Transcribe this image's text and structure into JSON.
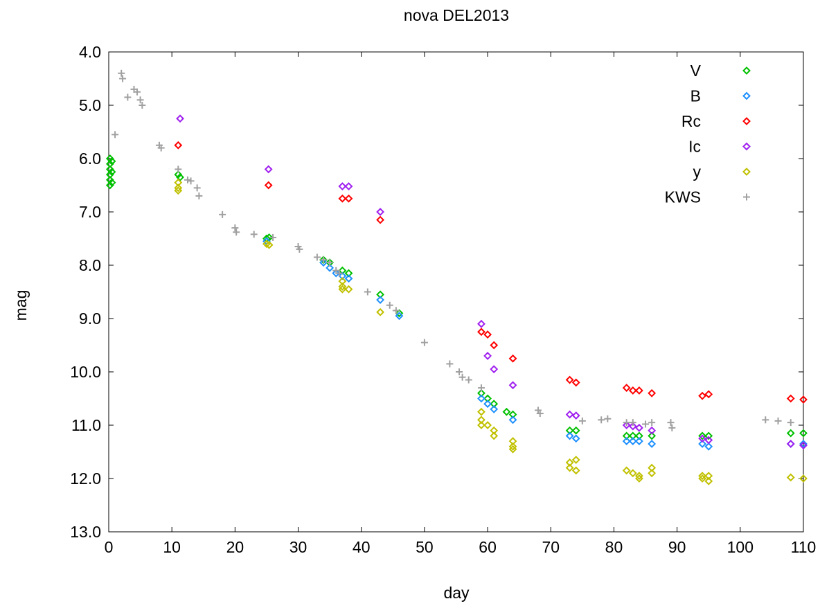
{
  "chart_data": {
    "type": "scatter",
    "title": "nova DEL2013",
    "xlabel": "day",
    "ylabel": "mag",
    "xlim": [
      0,
      110
    ],
    "ylim": [
      13.0,
      4.0
    ],
    "y_reversed": true,
    "grid": false,
    "legend_position": "top-right",
    "x_ticks": [
      0,
      10,
      20,
      30,
      40,
      50,
      60,
      70,
      80,
      90,
      100,
      110
    ],
    "x_tick_labels": [
      "0",
      "10",
      "20",
      "30",
      "40",
      "50",
      "60",
      "70",
      "80",
      "90",
      "100",
      "110"
    ],
    "y_ticks": [
      4.0,
      5.0,
      6.0,
      7.0,
      8.0,
      9.0,
      10.0,
      11.0,
      12.0,
      13.0
    ],
    "y_tick_labels": [
      "4.0",
      "5.0",
      "6.0",
      "7.0",
      "8.0",
      "9.0",
      "10.0",
      "11.0",
      "12.0",
      "13.0"
    ],
    "series": [
      {
        "name": "V",
        "color": "#00c000",
        "marker": "diamond",
        "points": [
          [
            0.2,
            6.0
          ],
          [
            0.2,
            6.1
          ],
          [
            0.2,
            6.2
          ],
          [
            0.2,
            6.3
          ],
          [
            0.2,
            6.4
          ],
          [
            0.2,
            6.5
          ],
          [
            0.5,
            6.05
          ],
          [
            0.5,
            6.25
          ],
          [
            0.5,
            6.45
          ],
          [
            11,
            6.3
          ],
          [
            11.3,
            6.35
          ],
          [
            25,
            7.5
          ],
          [
            25.4,
            7.48
          ],
          [
            34,
            7.9
          ],
          [
            35,
            7.95
          ],
          [
            37,
            8.1
          ],
          [
            38,
            8.15
          ],
          [
            43,
            8.55
          ],
          [
            46,
            8.9
          ],
          [
            59,
            10.4
          ],
          [
            60,
            10.5
          ],
          [
            61,
            10.6
          ],
          [
            63,
            10.75
          ],
          [
            64,
            10.8
          ],
          [
            73,
            11.1
          ],
          [
            74,
            11.1
          ],
          [
            82,
            11.2
          ],
          [
            83,
            11.2
          ],
          [
            84,
            11.2
          ],
          [
            86,
            11.2
          ],
          [
            94,
            11.2
          ],
          [
            95,
            11.2
          ],
          [
            108,
            11.15
          ],
          [
            110,
            11.15
          ]
        ]
      },
      {
        "name": "B",
        "color": "#1e90ff",
        "marker": "diamond",
        "points": [
          [
            25,
            7.55
          ],
          [
            34,
            7.95
          ],
          [
            35,
            8.05
          ],
          [
            36,
            8.15
          ],
          [
            37,
            8.2
          ],
          [
            38,
            8.25
          ],
          [
            43,
            8.65
          ],
          [
            46,
            8.95
          ],
          [
            59,
            10.5
          ],
          [
            60,
            10.6
          ],
          [
            61,
            10.7
          ],
          [
            64,
            10.9
          ],
          [
            73,
            11.2
          ],
          [
            74,
            11.25
          ],
          [
            82,
            11.3
          ],
          [
            83,
            11.3
          ],
          [
            84,
            11.3
          ],
          [
            86,
            11.35
          ],
          [
            94,
            11.35
          ],
          [
            95,
            11.4
          ],
          [
            108,
            11.35
          ],
          [
            110,
            11.35
          ]
        ]
      },
      {
        "name": "Rc",
        "color": "#ff0000",
        "marker": "diamond",
        "points": [
          [
            11,
            5.75
          ],
          [
            25.3,
            6.5
          ],
          [
            37,
            6.75
          ],
          [
            38,
            6.75
          ],
          [
            43,
            7.15
          ],
          [
            59,
            9.25
          ],
          [
            60,
            9.3
          ],
          [
            61,
            9.5
          ],
          [
            64,
            9.75
          ],
          [
            73,
            10.15
          ],
          [
            74,
            10.2
          ],
          [
            82,
            10.3
          ],
          [
            83,
            10.35
          ],
          [
            84,
            10.35
          ],
          [
            86,
            10.4
          ],
          [
            94,
            10.45
          ],
          [
            95,
            10.42
          ],
          [
            108,
            10.5
          ],
          [
            110,
            10.52
          ]
        ]
      },
      {
        "name": "Ic",
        "color": "#a020f0",
        "marker": "diamond",
        "points": [
          [
            11.3,
            5.25
          ],
          [
            25.3,
            6.2
          ],
          [
            37,
            6.52
          ],
          [
            38,
            6.52
          ],
          [
            43,
            7.0
          ],
          [
            59,
            9.1
          ],
          [
            60,
            9.7
          ],
          [
            61,
            9.95
          ],
          [
            64,
            10.25
          ],
          [
            73,
            10.8
          ],
          [
            74,
            10.82
          ],
          [
            82,
            11.0
          ],
          [
            83,
            11.02
          ],
          [
            84,
            11.05
          ],
          [
            86,
            11.1
          ],
          [
            94,
            11.25
          ],
          [
            95,
            11.28
          ],
          [
            108,
            11.35
          ],
          [
            110,
            11.38
          ]
        ]
      },
      {
        "name": "y",
        "color": "#c0c000",
        "marker": "diamond",
        "points": [
          [
            11,
            6.45
          ],
          [
            11,
            6.55
          ],
          [
            11,
            6.6
          ],
          [
            25,
            7.6
          ],
          [
            25.4,
            7.62
          ],
          [
            37,
            8.3
          ],
          [
            37,
            8.4
          ],
          [
            37,
            8.45
          ],
          [
            38,
            8.45
          ],
          [
            43,
            8.88
          ],
          [
            59,
            10.75
          ],
          [
            59,
            10.9
          ],
          [
            59,
            11.0
          ],
          [
            60,
            11.0
          ],
          [
            61,
            11.1
          ],
          [
            61,
            11.2
          ],
          [
            64,
            11.3
          ],
          [
            64,
            11.4
          ],
          [
            64,
            11.45
          ],
          [
            73,
            11.7
          ],
          [
            73,
            11.8
          ],
          [
            74,
            11.65
          ],
          [
            74,
            11.85
          ],
          [
            82,
            11.85
          ],
          [
            83,
            11.9
          ],
          [
            84,
            11.95
          ],
          [
            84,
            12.0
          ],
          [
            86,
            11.8
          ],
          [
            86,
            11.9
          ],
          [
            94,
            11.95
          ],
          [
            94,
            12.0
          ],
          [
            95,
            11.95
          ],
          [
            95,
            12.05
          ],
          [
            108,
            11.98
          ],
          [
            110,
            12.0
          ]
        ]
      },
      {
        "name": "KWS",
        "color": "#a0a0a0",
        "marker": "plus",
        "points": [
          [
            1,
            5.55
          ],
          [
            2,
            4.4
          ],
          [
            2.2,
            4.5
          ],
          [
            3,
            4.85
          ],
          [
            4,
            4.7
          ],
          [
            4.5,
            4.75
          ],
          [
            5,
            4.9
          ],
          [
            5.3,
            5.0
          ],
          [
            8,
            5.75
          ],
          [
            8.3,
            5.8
          ],
          [
            11,
            6.2
          ],
          [
            12.5,
            6.4
          ],
          [
            13,
            6.42
          ],
          [
            14,
            6.55
          ],
          [
            14.3,
            6.7
          ],
          [
            18,
            7.05
          ],
          [
            20,
            7.3
          ],
          [
            20.2,
            7.38
          ],
          [
            23,
            7.42
          ],
          [
            26,
            7.48
          ],
          [
            30,
            7.65
          ],
          [
            30.2,
            7.7
          ],
          [
            33,
            7.85
          ],
          [
            34,
            7.9
          ],
          [
            35,
            7.95
          ],
          [
            36,
            8.1
          ],
          [
            36.5,
            8.15
          ],
          [
            41,
            8.5
          ],
          [
            44.5,
            8.75
          ],
          [
            45.5,
            8.85
          ],
          [
            50,
            9.45
          ],
          [
            54,
            9.85
          ],
          [
            55.5,
            10.0
          ],
          [
            56,
            10.1
          ],
          [
            57,
            10.15
          ],
          [
            59,
            10.3
          ],
          [
            68,
            10.72
          ],
          [
            68.3,
            10.78
          ],
          [
            75,
            10.92
          ],
          [
            78,
            10.9
          ],
          [
            79,
            10.88
          ],
          [
            82,
            10.95
          ],
          [
            83,
            10.95
          ],
          [
            85,
            10.98
          ],
          [
            86,
            10.95
          ],
          [
            89,
            10.95
          ],
          [
            89.2,
            11.05
          ],
          [
            104,
            10.9
          ],
          [
            106,
            10.92
          ],
          [
            108,
            10.95
          ]
        ]
      }
    ]
  }
}
